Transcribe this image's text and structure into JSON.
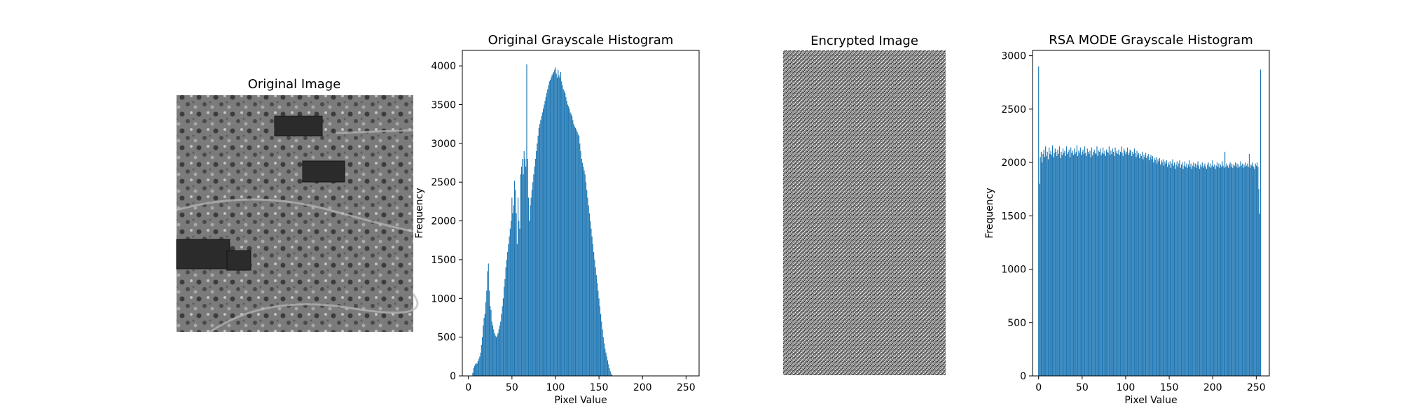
{
  "panels": {
    "original_image": {
      "title": "Original Image"
    },
    "encrypted_image": {
      "title": "Encrypted Image"
    }
  },
  "colors": {
    "bar": "#1f77b4",
    "axis": "#000000"
  },
  "chart_data": [
    {
      "type": "bar",
      "title": "Original Grayscale Histogram",
      "xlabel": "Pixel Value",
      "ylabel": "Frequency",
      "xlim": [
        -7,
        265
      ],
      "ylim": [
        0,
        4200
      ],
      "xticks": [
        0,
        50,
        100,
        150,
        200,
        250
      ],
      "yticks": [
        0,
        500,
        1000,
        1500,
        2000,
        2500,
        3000,
        3500,
        4000
      ],
      "grid": false,
      "x_start": 0,
      "values": [
        0,
        0,
        0,
        0,
        0,
        40,
        100,
        130,
        150,
        160,
        160,
        190,
        220,
        250,
        300,
        400,
        500,
        650,
        750,
        800,
        950,
        1100,
        1350,
        1450,
        1100,
        900,
        850,
        700,
        650,
        600,
        550,
        520,
        500,
        520,
        550,
        600,
        650,
        700,
        800,
        900,
        1000,
        1150,
        1250,
        1400,
        1500,
        1600,
        1700,
        1800,
        1900,
        2000,
        2300,
        2100,
        2200,
        2520,
        2400,
        2100,
        1700,
        2300,
        2000,
        1900,
        2600,
        2700,
        2800,
        2600,
        2900,
        2800,
        2700,
        4020,
        2800,
        2300,
        2000,
        2200,
        2300,
        2400,
        2500,
        2600,
        2700,
        2800,
        2900,
        3000,
        3100,
        3200,
        3250,
        3300,
        3350,
        3400,
        3450,
        3500,
        3550,
        3600,
        3650,
        3700,
        3750,
        3800,
        3820,
        3850,
        3880,
        3900,
        3920,
        3950,
        3980,
        3900,
        3850,
        3950,
        3880,
        3850,
        3920,
        3800,
        3750,
        3700,
        3680,
        3650,
        3600,
        3550,
        3500,
        3480,
        3450,
        3400,
        3380,
        3350,
        3300,
        3250,
        3220,
        3200,
        3180,
        3150,
        3120,
        3100,
        3000,
        2900,
        2800,
        2750,
        2700,
        2650,
        2600,
        2500,
        2400,
        2300,
        2200,
        2100,
        2000,
        1900,
        1800,
        1700,
        1600,
        1500,
        1400,
        1300,
        1200,
        1100,
        1000,
        900,
        800,
        700,
        600,
        500,
        420,
        350,
        300,
        250,
        200,
        150,
        100,
        60,
        30,
        10,
        0,
        0,
        0,
        0,
        0,
        0,
        0,
        0,
        0,
        0,
        0,
        0,
        0,
        0,
        0,
        0,
        0,
        0,
        0,
        0,
        0,
        0,
        0,
        0,
        0,
        0,
        0,
        0,
        0,
        0,
        0,
        0,
        0,
        0,
        0,
        0,
        0,
        0,
        0,
        0,
        0,
        0,
        0,
        0,
        0,
        0,
        0,
        0,
        0,
        0,
        0,
        0,
        0,
        0,
        0,
        0,
        0,
        0,
        0,
        0,
        0,
        0,
        0,
        0,
        0,
        0,
        0,
        0,
        0,
        0,
        0,
        0,
        0,
        0,
        0,
        0,
        0,
        0,
        0,
        0,
        0,
        0,
        0,
        0,
        0,
        0,
        0,
        0,
        0,
        0,
        0,
        0,
        0,
        0,
        0,
        0,
        0,
        0,
        0,
        0,
        0,
        0,
        0,
        0,
        0,
        0,
        0,
        0,
        0,
        0,
        0,
        0,
        0,
        0,
        0,
        0,
        0,
        0,
        0,
        0
      ]
    },
    {
      "type": "bar",
      "title": "RSA MODE Grayscale Histogram",
      "xlabel": "Pixel Value",
      "ylabel": "Frequency",
      "xlim": [
        -7,
        265
      ],
      "ylim": [
        0,
        3050
      ],
      "xticks": [
        0,
        50,
        100,
        150,
        200,
        250
      ],
      "yticks": [
        0,
        500,
        1000,
        1500,
        2000,
        2500,
        3000
      ],
      "grid": false,
      "x_start": 0,
      "values": [
        2900,
        1800,
        2050,
        2100,
        2000,
        2080,
        2120,
        2050,
        2150,
        2060,
        2100,
        2030,
        2140,
        2080,
        2110,
        2070,
        2160,
        2050,
        2090,
        2130,
        2100,
        2060,
        2120,
        2080,
        2150,
        2040,
        2100,
        2070,
        2130,
        2090,
        2110,
        2060,
        2150,
        2080,
        2100,
        2120,
        2050,
        2140,
        2090,
        2110,
        2070,
        2130,
        2080,
        2100,
        2160,
        2060,
        2110,
        2090,
        2140,
        2070,
        2100,
        2120,
        2080,
        2150,
        2090,
        2060,
        2130,
        2100,
        2080,
        2110,
        2050,
        2140,
        2070,
        2100,
        2120,
        2090,
        2080,
        2150,
        2060,
        2110,
        2100,
        2130,
        2070,
        2090,
        2140,
        2080,
        2110,
        2060,
        2120,
        2100,
        2090,
        2150,
        2070,
        2110,
        2080,
        2130,
        2100,
        2060,
        2140,
        2090,
        2110,
        2080,
        2120,
        2070,
        2100,
        2150,
        2090,
        2060,
        2130,
        2110,
        2080,
        2100,
        2140,
        2070,
        2090,
        2120,
        2110,
        2060,
        2100,
        2080,
        2130,
        2090,
        2050,
        2110,
        2070,
        2090,
        2040,
        2080,
        2060,
        2100,
        2030,
        2070,
        2050,
        2090,
        2040,
        2060,
        2080,
        2020,
        2050,
        2070,
        2030,
        2060,
        2000,
        2040,
        2020,
        2050,
        1990,
        2030,
        2010,
        2040,
        1980,
        2020,
        2000,
        2030,
        1970,
        2010,
        1990,
        2020,
        1960,
        2000,
        1980,
        2010,
        1950,
        1990,
        2030,
        1970,
        2000,
        1940,
        1980,
        2010,
        1960,
        1990,
        2020,
        1950,
        1980,
        2000,
        1940,
        1970,
        2010,
        1960,
        1990,
        1950,
        1980,
        2020,
        1960,
        1990,
        1940,
        1970,
        2000,
        1960,
        1990,
        1950,
        1980,
        2010,
        1970,
        1940,
        1980,
        1960,
        2000,
        1950,
        1970,
        1990,
        1960,
        1940,
        1980,
        2000,
        1960,
        1990,
        1950,
        1970,
        2020,
        1960,
        1980,
        1940,
        1970,
        2000,
        1960,
        1990,
        1950,
        1980,
        1960,
        2010,
        1970,
        1950,
        2100,
        1960,
        1990,
        1970,
        1950,
        1980,
        2000,
        1960,
        1990,
        1950,
        1980,
        1970,
        2000,
        1960,
        1990,
        1950,
        1980,
        1960,
        2010,
        1970,
        1990,
        1950,
        1980,
        1960,
        2000,
        1970,
        1990,
        1960,
        2080,
        1950,
        1980,
        1970,
        2000,
        1960,
        1940,
        1990,
        1970,
        2000,
        1960,
        1750,
        1520,
        2870
      ]
    }
  ]
}
